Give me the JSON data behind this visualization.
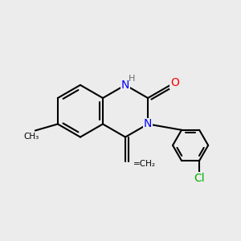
{
  "bg_color": "#ececec",
  "bond_color": "#000000",
  "bond_width": 1.5,
  "atom_colors": {
    "N": "#0000ff",
    "O": "#ff0000",
    "Cl": "#00b000",
    "H": "#6a6a6a"
  },
  "font_size_atom": 10,
  "font_size_H": 8,
  "figsize": [
    3.0,
    3.0
  ],
  "dpi": 100
}
